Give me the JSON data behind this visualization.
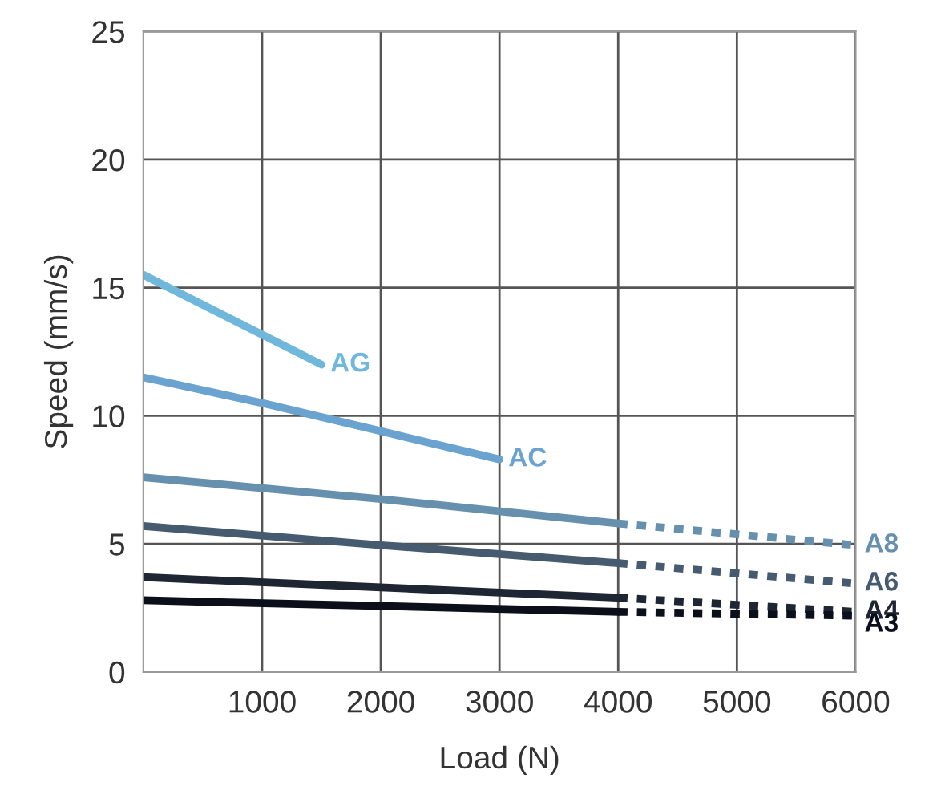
{
  "chart_data": {
    "type": "line",
    "xlabel": "Load (N)",
    "ylabel": "Speed (mm/s)",
    "xlim": [
      0,
      6000
    ],
    "ylim": [
      0,
      25
    ],
    "xticks": [
      1000,
      2000,
      3000,
      4000,
      5000,
      6000
    ],
    "yticks": [
      0,
      5,
      10,
      15,
      20,
      25
    ],
    "grid": true,
    "legend": false,
    "marker": "none",
    "series": [
      {
        "name": "AG",
        "color": "#6fb8dc",
        "x": [
          0,
          1500
        ],
        "values": [
          15.5,
          12.0
        ],
        "line_style": "solid"
      },
      {
        "name": "AC",
        "color": "#6aa3d0",
        "x": [
          0,
          1000,
          2000,
          3000
        ],
        "values": [
          11.5,
          10.5,
          9.4,
          8.3
        ],
        "line_style": "solid"
      },
      {
        "color": "#6690ae",
        "x": [
          0,
          2000,
          4000
        ],
        "values": [
          7.6,
          6.75,
          5.8
        ],
        "line_style": "solid"
      },
      {
        "name": "A8",
        "color": "#6690ae",
        "x": [
          4000,
          6000
        ],
        "values": [
          5.8,
          4.95
        ],
        "line_style": "dashed"
      },
      {
        "color": "#465a70",
        "x": [
          0,
          2000,
          4000
        ],
        "values": [
          5.7,
          4.95,
          4.25
        ],
        "line_style": "solid"
      },
      {
        "name": "A6",
        "color": "#465a70",
        "x": [
          4000,
          6000
        ],
        "values": [
          4.25,
          3.45
        ],
        "line_style": "dashed"
      },
      {
        "color": "#1e2533",
        "x": [
          0,
          4000
        ],
        "values": [
          3.7,
          2.9
        ],
        "line_style": "solid"
      },
      {
        "name": "A4",
        "color": "#1e2533",
        "x": [
          4000,
          6000
        ],
        "values": [
          2.9,
          2.35
        ],
        "line_style": "dashed"
      },
      {
        "color": "#0b0f1a",
        "x": [
          0,
          4000
        ],
        "values": [
          2.8,
          2.35
        ],
        "line_style": "solid"
      },
      {
        "name": "A3",
        "color": "#0b0f1a",
        "x": [
          4000,
          6000
        ],
        "values": [
          2.35,
          2.2
        ],
        "line_style": "dashed"
      }
    ]
  }
}
